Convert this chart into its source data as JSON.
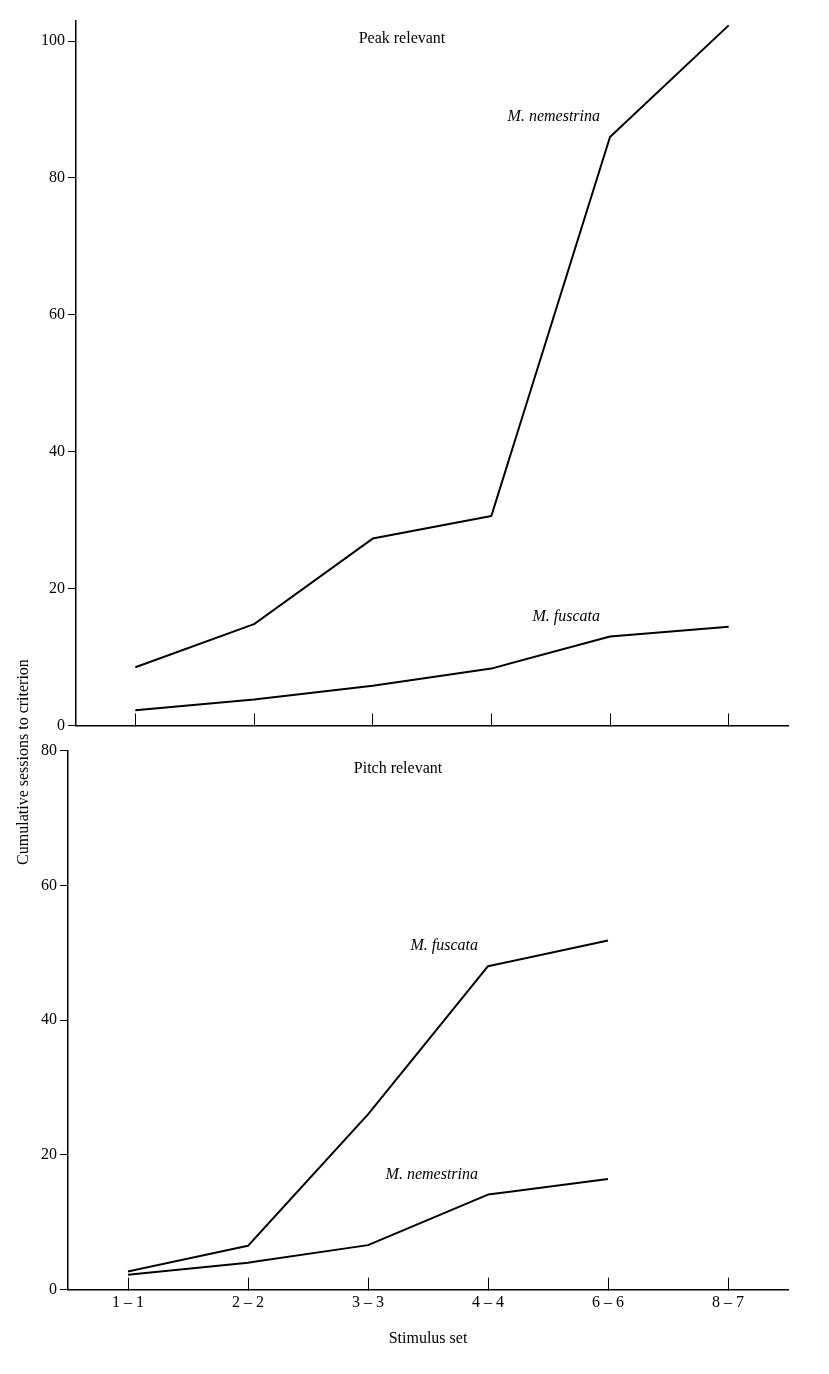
{
  "chart_data": [
    {
      "type": "line",
      "title": "Peak relevant",
      "ylabel": "Cumulative sessions to criterion",
      "categories": [
        null,
        null,
        null,
        null,
        null,
        null
      ],
      "ylim": [
        0,
        103
      ],
      "yticks": [
        0,
        20,
        40,
        60,
        80,
        100
      ],
      "tick_labels": "y",
      "marker": "none",
      "line_style": "solid",
      "series": [
        {
          "name": "M. nemestrina",
          "color": "#000000",
          "values": [
            8.5,
            14.8,
            27.3,
            30.6,
            86,
            102.3
          ]
        },
        {
          "name": "M. fuscata",
          "color": "#000000",
          "values": [
            2.2,
            3.8,
            5.8,
            8.3,
            13,
            14.4
          ]
        }
      ]
    },
    {
      "type": "line",
      "title": "Pitch relevant",
      "xlabel": "Stimulus set",
      "categories": [
        "1 – 1",
        "2 – 2",
        "3 – 3",
        "4 – 4",
        "6 – 6",
        "8 – 7"
      ],
      "ylim": [
        0,
        80
      ],
      "yticks": [
        0,
        20,
        40,
        60,
        80
      ],
      "marker": "none",
      "line_style": "solid",
      "series": [
        {
          "name": "M. fuscata",
          "color": "#000000",
          "values": [
            2.7,
            6.5,
            26,
            48,
            51.8,
            null
          ]
        },
        {
          "name": "M. nemestrina",
          "color": "#000000",
          "values": [
            2.2,
            4,
            6.6,
            14.1,
            16.4,
            null
          ]
        }
      ]
    }
  ]
}
